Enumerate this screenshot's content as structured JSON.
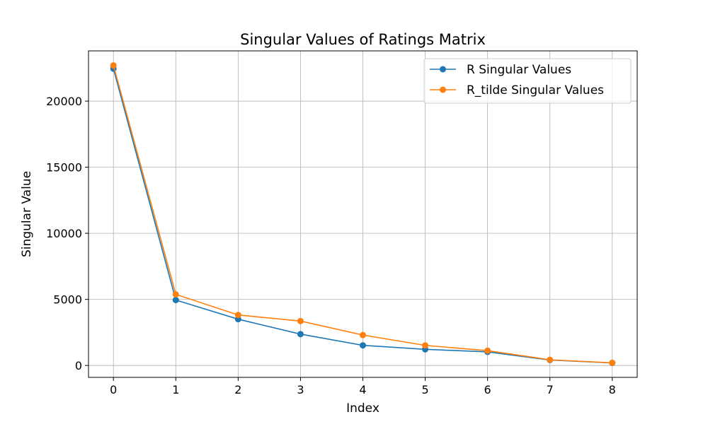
{
  "chart_data": {
    "type": "line",
    "title": "Singular Values of Ratings Matrix",
    "xlabel": "Index",
    "ylabel": "Singular Value",
    "x": [
      0,
      1,
      2,
      3,
      4,
      5,
      6,
      7,
      8
    ],
    "xticks": [
      "0",
      "1",
      "2",
      "3",
      "4",
      "5",
      "6",
      "7",
      "8"
    ],
    "yticks": [
      0,
      5000,
      10000,
      15000,
      20000
    ],
    "ytick_labels": [
      "0",
      "5000",
      "10000",
      "15000",
      "20000"
    ],
    "xlim": [
      -0.4,
      8.4
    ],
    "ylim": [
      -900,
      23800
    ],
    "grid": true,
    "legend_position": "upper right",
    "series": [
      {
        "name": "R Singular Values",
        "color": "#1f77b4",
        "marker": "circle",
        "values": [
          22450,
          4950,
          3500,
          2370,
          1520,
          1220,
          1030,
          410,
          190
        ]
      },
      {
        "name": "R_tilde Singular Values",
        "color": "#ff7f0e",
        "marker": "circle",
        "values": [
          22700,
          5380,
          3820,
          3360,
          2300,
          1520,
          1120,
          430,
          200
        ]
      }
    ]
  }
}
